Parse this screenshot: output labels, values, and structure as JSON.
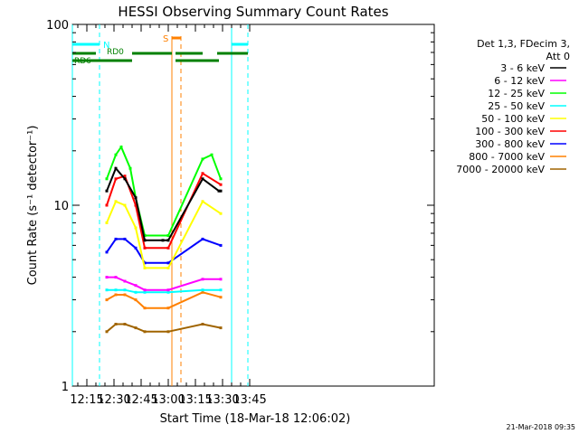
{
  "chart_data": {
    "type": "line",
    "title": "HESSI Observing Summary Count Rates",
    "xlabel": "Start Time (18-Mar-18 12:06:02)",
    "ylabel": "Count Rate (s⁻¹ detector⁻¹)",
    "ylim": [
      1,
      100
    ],
    "yscale": "log",
    "xlim_min": [
      7,
      207
    ],
    "x_ticks": [
      {
        "min": 15,
        "label": "12:15"
      },
      {
        "min": 30,
        "label": "12:30"
      },
      {
        "min": 45,
        "label": "12:45"
      },
      {
        "min": 60,
        "label": "13:00"
      },
      {
        "min": 75,
        "label": "13:15"
      },
      {
        "min": 90,
        "label": "13:30"
      },
      {
        "min": 105,
        "label": "13:45"
      }
    ],
    "y_ticks": [
      {
        "value": 1,
        "label": "1"
      },
      {
        "value": 10,
        "label": "10"
      },
      {
        "value": 100,
        "label": "100"
      }
    ],
    "legend_position": "top-right",
    "legend_header": [
      "Det 1,3, FDecim 3,",
      "Att 0"
    ],
    "series": [
      {
        "name": "3 - 6 keV",
        "color": "#000000",
        "values": [
          [
            26,
            12
          ],
          [
            31,
            16
          ],
          [
            36,
            14
          ],
          [
            42,
            11
          ],
          [
            47,
            6.4
          ],
          [
            57,
            6.4
          ],
          [
            60,
            6.4
          ],
          [
            79,
            14
          ],
          [
            88,
            12
          ],
          [
            89,
            12
          ]
        ]
      },
      {
        "name": "6 - 12 keV",
        "color": "#ff00ff",
        "values": [
          [
            26,
            4.0
          ],
          [
            31,
            4.0
          ],
          [
            36,
            3.8
          ],
          [
            42,
            3.6
          ],
          [
            47,
            3.4
          ],
          [
            60,
            3.4
          ],
          [
            79,
            3.9
          ],
          [
            89,
            3.9
          ]
        ]
      },
      {
        "name": "12 - 25 keV",
        "color": "#00ff00",
        "values": [
          [
            26,
            14
          ],
          [
            31,
            19
          ],
          [
            34,
            21
          ],
          [
            39,
            16
          ],
          [
            42,
            11
          ],
          [
            47,
            6.8
          ],
          [
            60,
            6.8
          ],
          [
            79,
            18
          ],
          [
            84,
            19
          ],
          [
            89,
            14
          ]
        ]
      },
      {
        "name": "25 - 50 keV",
        "color": "#00ffff",
        "values": [
          [
            26,
            3.4
          ],
          [
            31,
            3.4
          ],
          [
            36,
            3.4
          ],
          [
            42,
            3.3
          ],
          [
            47,
            3.3
          ],
          [
            60,
            3.3
          ],
          [
            79,
            3.4
          ],
          [
            89,
            3.4
          ]
        ]
      },
      {
        "name": "50 - 100 keV",
        "color": "#ffff00",
        "values": [
          [
            26,
            8
          ],
          [
            31,
            10.5
          ],
          [
            36,
            10
          ],
          [
            42,
            7.5
          ],
          [
            47,
            4.5
          ],
          [
            60,
            4.5
          ],
          [
            79,
            10.5
          ],
          [
            89,
            9
          ]
        ]
      },
      {
        "name": "100 - 300 keV",
        "color": "#ff0000",
        "values": [
          [
            26,
            10
          ],
          [
            31,
            14
          ],
          [
            36,
            14.5
          ],
          [
            42,
            10
          ],
          [
            47,
            5.8
          ],
          [
            60,
            5.8
          ],
          [
            79,
            15
          ],
          [
            89,
            13
          ]
        ]
      },
      {
        "name": "300 - 800 keV",
        "color": "#0000ff",
        "values": [
          [
            26,
            5.5
          ],
          [
            31,
            6.5
          ],
          [
            36,
            6.5
          ],
          [
            42,
            5.8
          ],
          [
            47,
            4.8
          ],
          [
            60,
            4.8
          ],
          [
            79,
            6.5
          ],
          [
            89,
            6
          ]
        ]
      },
      {
        "name": "800 - 7000 keV",
        "color": "#ff8000",
        "values": [
          [
            26,
            3.0
          ],
          [
            31,
            3.2
          ],
          [
            36,
            3.2
          ],
          [
            42,
            3.0
          ],
          [
            47,
            2.7
          ],
          [
            60,
            2.7
          ],
          [
            79,
            3.3
          ],
          [
            89,
            3.1
          ]
        ]
      },
      {
        "name": "7000 - 20000 keV",
        "color": "#a06400",
        "values": [
          [
            26,
            2.0
          ],
          [
            31,
            2.2
          ],
          [
            36,
            2.2
          ],
          [
            42,
            2.1
          ],
          [
            47,
            2.0
          ],
          [
            60,
            2.0
          ],
          [
            79,
            2.2
          ],
          [
            89,
            2.1
          ]
        ]
      }
    ],
    "markers": [
      {
        "label": "N",
        "color": "#00ffff",
        "start": 7,
        "end": 22
      },
      {
        "label": "N",
        "color": "#00ffff",
        "start": 95,
        "end": 104
      },
      {
        "label": "S",
        "color": "#ff8000",
        "start": 62,
        "end": 67
      }
    ],
    "rad_labels": [
      "RD0",
      "RD6"
    ],
    "rad_bars": [
      [
        7,
        20
      ],
      [
        40,
        62
      ],
      [
        64,
        79
      ],
      [
        87,
        104
      ],
      [
        7,
        13
      ],
      [
        13,
        40
      ],
      [
        64,
        88
      ]
    ],
    "cyan_vertical_lines_min": [
      7,
      95
    ],
    "cyan_dashed_lines_min": [
      22,
      104
    ],
    "orange_vertical_line_min": 62,
    "orange_dashed_line_min": 67
  },
  "timestamp": "21-Mar-2018 09:35"
}
